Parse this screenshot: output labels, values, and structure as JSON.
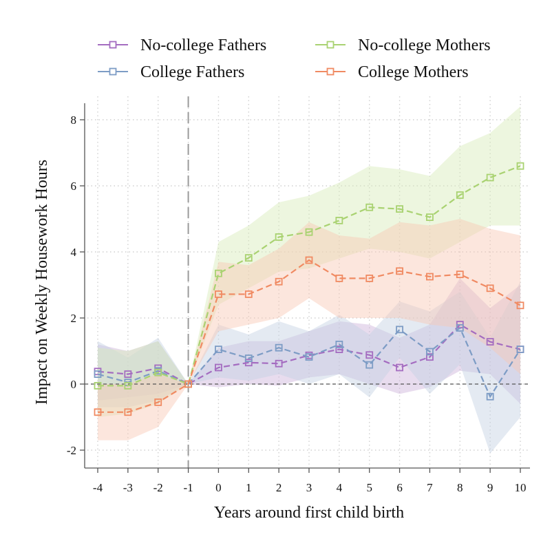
{
  "chart_data": {
    "type": "line",
    "xlabel": "Years around first child birth",
    "ylabel": "Impact on Weekly Housework Hours",
    "x": [
      -4,
      -3,
      -2,
      -1,
      0,
      1,
      2,
      3,
      4,
      5,
      6,
      7,
      8,
      9,
      10
    ],
    "x_ticks": [
      "-4",
      "-3",
      "-2",
      "-1",
      "0",
      "1",
      "2",
      "3",
      "4",
      "5",
      "6",
      "7",
      "8",
      "9",
      "10"
    ],
    "y_ticks": [
      "-2",
      "0",
      "2",
      "4",
      "6",
      "8"
    ],
    "xlim": [
      -4,
      10
    ],
    "ylim": [
      -2.6,
      8.6
    ],
    "grid": true,
    "reference_lines": {
      "y": 0,
      "x": -1
    },
    "legend_position": "top",
    "series": [
      {
        "name": "No-college Fathers",
        "color": "#a46cc0",
        "band_color": "#cdb2da",
        "values": [
          0.38,
          0.3,
          0.48,
          0.0,
          0.5,
          0.65,
          0.62,
          0.87,
          1.05,
          0.88,
          0.5,
          0.82,
          1.8,
          1.28,
          1.05
        ],
        "lower": [
          -0.5,
          -0.4,
          -0.3,
          0.0,
          -0.1,
          0.0,
          -0.05,
          0.2,
          0.3,
          0.0,
          -0.3,
          -0.1,
          0.4,
          0.3,
          -0.6
        ],
        "upper": [
          1.2,
          1.0,
          1.3,
          0.0,
          1.1,
          1.3,
          1.3,
          1.6,
          1.9,
          1.8,
          1.4,
          1.8,
          3.2,
          2.3,
          3.0
        ]
      },
      {
        "name": "College Fathers",
        "color": "#7d9cc5",
        "band_color": "#c4d0e3",
        "values": [
          0.3,
          0.05,
          0.4,
          0.0,
          1.05,
          0.78,
          1.1,
          0.82,
          1.2,
          0.58,
          1.65,
          0.98,
          1.7,
          -0.38,
          1.05
        ],
        "lower": [
          -0.7,
          -0.7,
          -0.5,
          0.0,
          0.2,
          0.1,
          0.3,
          0.0,
          0.3,
          -0.4,
          0.8,
          -0.3,
          0.6,
          -2.1,
          -1.0
        ],
        "upper": [
          1.3,
          0.8,
          1.4,
          0.0,
          1.8,
          1.5,
          1.9,
          1.6,
          2.1,
          1.5,
          2.5,
          2.2,
          2.8,
          1.4,
          3.1
        ]
      },
      {
        "name": "No-college Mothers",
        "color": "#a9d271",
        "band_color": "#d6ebb8",
        "values": [
          -0.05,
          -0.05,
          0.35,
          0.0,
          3.35,
          3.82,
          4.45,
          4.6,
          4.95,
          5.35,
          5.3,
          5.05,
          5.72,
          6.25,
          6.6
        ],
        "lower": [
          -1.0,
          -0.9,
          -0.6,
          0.0,
          2.4,
          2.9,
          3.4,
          3.5,
          3.8,
          4.1,
          4.0,
          3.8,
          4.3,
          4.8,
          4.8
        ],
        "upper": [
          1.1,
          1.0,
          1.3,
          0.0,
          4.3,
          4.8,
          5.5,
          5.7,
          6.1,
          6.6,
          6.5,
          6.3,
          7.2,
          7.6,
          8.4
        ]
      },
      {
        "name": "College Mothers",
        "color": "#f08a62",
        "band_color": "#f8c7b4",
        "values": [
          -0.85,
          -0.85,
          -0.55,
          0.0,
          2.72,
          2.72,
          3.1,
          3.75,
          3.2,
          3.2,
          3.42,
          3.25,
          3.32,
          2.9,
          2.38
        ],
        "lower": [
          -1.7,
          -1.7,
          -1.3,
          0.0,
          1.6,
          1.8,
          2.0,
          2.6,
          2.0,
          2.0,
          2.0,
          1.8,
          1.7,
          1.1,
          0.3
        ],
        "upper": [
          0.0,
          0.0,
          0.3,
          0.0,
          3.7,
          3.6,
          4.1,
          4.9,
          4.5,
          4.4,
          4.9,
          4.8,
          5.0,
          4.7,
          4.5
        ]
      }
    ]
  }
}
